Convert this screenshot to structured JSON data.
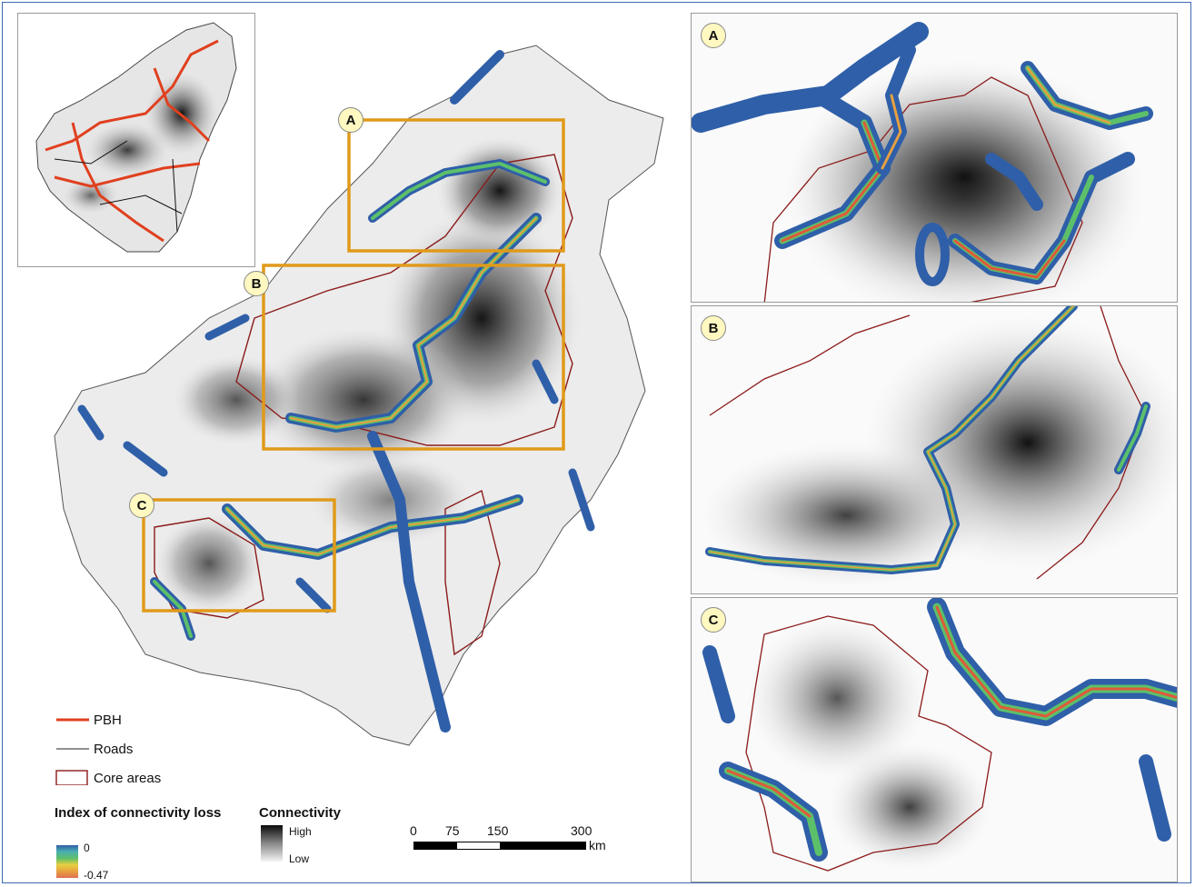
{
  "panels": {
    "main": {
      "badges": [
        "A",
        "B",
        "C"
      ]
    },
    "zooms": [
      {
        "label": "A"
      },
      {
        "label": "B"
      },
      {
        "label": "C"
      }
    ]
  },
  "legend": {
    "pbh_label": "PBH",
    "roads_label": "Roads",
    "core_label": "Core areas",
    "loss_title": "Index of connectivity loss",
    "loss_max": "0",
    "loss_min": "-0.47",
    "connectivity_title": "Connectivity",
    "connectivity_high": "High",
    "connectivity_low": "Low"
  },
  "scalebar": {
    "ticks": [
      "0",
      "75",
      "150",
      "300"
    ],
    "unit": "km"
  },
  "colors": {
    "pbh": "#e0401f",
    "core": "#8b1a1a",
    "roads": "#222222",
    "box": "#e09a1a",
    "corridor_blue": "#2f5fa8",
    "corridor_green": "#5cc06a",
    "corridor_orange": "#e8a040"
  }
}
